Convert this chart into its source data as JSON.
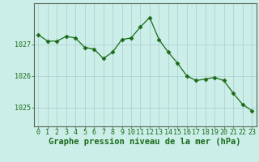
{
  "x": [
    0,
    1,
    2,
    3,
    4,
    5,
    6,
    7,
    8,
    9,
    10,
    11,
    12,
    13,
    14,
    15,
    16,
    17,
    18,
    19,
    20,
    21,
    22,
    23
  ],
  "y": [
    1027.3,
    1027.1,
    1027.1,
    1027.25,
    1027.2,
    1026.9,
    1026.85,
    1026.55,
    1026.75,
    1027.15,
    1027.2,
    1027.55,
    1027.85,
    1027.15,
    1026.75,
    1026.4,
    1026.0,
    1025.85,
    1025.9,
    1025.95,
    1025.85,
    1025.45,
    1025.1,
    1024.9
  ],
  "line_color": "#1a6b1a",
  "marker": "D",
  "marker_size": 2.5,
  "bg_color": "#cceee8",
  "grid_color": "#aacccc",
  "xlabel": "Graphe pression niveau de la mer (hPa)",
  "xlabel_color": "#1a6b1a",
  "yticks": [
    1025,
    1026,
    1027
  ],
  "ylim": [
    1024.4,
    1028.3
  ],
  "xlim": [
    -0.5,
    23.5
  ],
  "xticks": [
    0,
    1,
    2,
    3,
    4,
    5,
    6,
    7,
    8,
    9,
    10,
    11,
    12,
    13,
    14,
    15,
    16,
    17,
    18,
    19,
    20,
    21,
    22,
    23
  ],
  "tick_color": "#1a6b1a",
  "axis_color": "#556655",
  "label_fontsize": 6,
  "xlabel_fontsize": 7.5
}
